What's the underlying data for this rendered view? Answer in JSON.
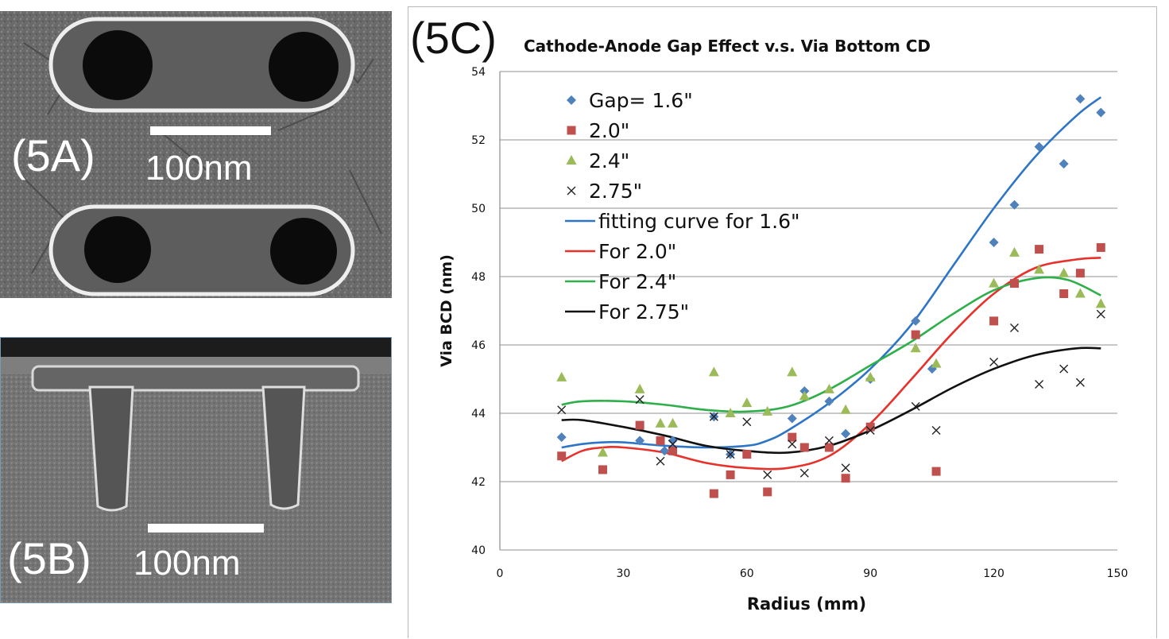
{
  "panels": {
    "a": {
      "label": "(5A)",
      "scale": "100nm"
    },
    "b": {
      "label": "(5B)",
      "scale": "100nm"
    },
    "c": {
      "label": "(5C)"
    }
  },
  "chart_data": {
    "type": "scatter",
    "title": "Cathode-Anode Gap Effect v.s. Via Bottom CD",
    "xlabel": "Radius (mm)",
    "ylabel": "Via BCD (nm)",
    "xlim": [
      0,
      150
    ],
    "ylim": [
      40,
      54
    ],
    "xticks": [
      0,
      30,
      60,
      90,
      120,
      150
    ],
    "yticks": [
      40,
      42,
      44,
      46,
      48,
      50,
      52,
      54
    ],
    "grid": "horizontal",
    "legend_position": "top-left",
    "series": [
      {
        "name": "Gap= 1.6\"",
        "marker": "diamond",
        "color": "#4f81bd",
        "points": [
          [
            15,
            43.3
          ],
          [
            34,
            43.2
          ],
          [
            40,
            42.9
          ],
          [
            42,
            43.2
          ],
          [
            52,
            43.9
          ],
          [
            56,
            42.8
          ],
          [
            71,
            43.85
          ],
          [
            74,
            44.65
          ],
          [
            80,
            44.35
          ],
          [
            84,
            43.4
          ],
          [
            90,
            45.0
          ],
          [
            101,
            46.7
          ],
          [
            105,
            45.3
          ],
          [
            120,
            49.0
          ],
          [
            125,
            50.1
          ],
          [
            131,
            51.8
          ],
          [
            137,
            51.3
          ],
          [
            141,
            53.2
          ],
          [
            146,
            52.8
          ]
        ]
      },
      {
        "name": "2.0\"",
        "marker": "square",
        "color": "#c0504d",
        "points": [
          [
            15,
            42.75
          ],
          [
            25,
            42.35
          ],
          [
            34,
            43.65
          ],
          [
            39,
            43.2
          ],
          [
            42,
            42.9
          ],
          [
            52,
            41.65
          ],
          [
            56,
            42.2
          ],
          [
            60,
            42.8
          ],
          [
            65,
            41.7
          ],
          [
            71,
            43.3
          ],
          [
            74,
            43.0
          ],
          [
            80,
            43.0
          ],
          [
            84,
            42.1
          ],
          [
            90,
            43.6
          ],
          [
            101,
            46.3
          ],
          [
            106,
            42.3
          ],
          [
            120,
            46.7
          ],
          [
            125,
            47.8
          ],
          [
            131,
            48.8
          ],
          [
            137,
            47.5
          ],
          [
            141,
            48.1
          ],
          [
            146,
            48.85
          ]
        ]
      },
      {
        "name": "2.4\"",
        "marker": "triangle",
        "color": "#9bbb59",
        "points": [
          [
            15,
            45.05
          ],
          [
            25,
            42.85
          ],
          [
            34,
            44.7
          ],
          [
            39,
            43.7
          ],
          [
            42,
            43.7
          ],
          [
            52,
            45.2
          ],
          [
            56,
            44.0
          ],
          [
            60,
            44.3
          ],
          [
            65,
            44.05
          ],
          [
            71,
            45.2
          ],
          [
            74,
            44.5
          ],
          [
            80,
            44.7
          ],
          [
            84,
            44.1
          ],
          [
            90,
            45.05
          ],
          [
            101,
            45.9
          ],
          [
            106,
            45.45
          ],
          [
            120,
            47.8
          ],
          [
            125,
            48.7
          ],
          [
            131,
            48.2
          ],
          [
            137,
            48.1
          ],
          [
            141,
            47.5
          ],
          [
            146,
            47.2
          ]
        ]
      },
      {
        "name": "2.75\"",
        "marker": "x",
        "color": "#222222",
        "points": [
          [
            15,
            44.1
          ],
          [
            34,
            44.4
          ],
          [
            39,
            42.6
          ],
          [
            42,
            43.1
          ],
          [
            52,
            43.9
          ],
          [
            56,
            42.8
          ],
          [
            60,
            43.75
          ],
          [
            65,
            42.2
          ],
          [
            71,
            43.1
          ],
          [
            74,
            42.25
          ],
          [
            80,
            43.2
          ],
          [
            84,
            42.4
          ],
          [
            90,
            43.5
          ],
          [
            101,
            44.2
          ],
          [
            106,
            43.5
          ],
          [
            120,
            45.5
          ],
          [
            125,
            46.5
          ],
          [
            131,
            44.85
          ],
          [
            137,
            45.3
          ],
          [
            141,
            44.9
          ],
          [
            146,
            46.9
          ]
        ]
      },
      {
        "name": "fitting curve for 1.6\"",
        "marker": "line",
        "color": "#2e75c8",
        "points": [
          [
            15,
            43.0
          ],
          [
            20,
            43.1
          ],
          [
            25,
            43.15
          ],
          [
            30,
            43.15
          ],
          [
            40,
            43.05
          ],
          [
            50,
            43.0
          ],
          [
            60,
            43.05
          ],
          [
            65,
            43.2
          ],
          [
            70,
            43.5
          ],
          [
            80,
            44.3
          ],
          [
            90,
            45.3
          ],
          [
            100,
            46.6
          ],
          [
            110,
            48.3
          ],
          [
            120,
            50.0
          ],
          [
            130,
            51.5
          ],
          [
            140,
            52.7
          ],
          [
            146,
            53.25
          ]
        ]
      },
      {
        "name": "For 2.0\"",
        "marker": "line",
        "color": "#e8312a",
        "points": [
          [
            15,
            42.6
          ],
          [
            20,
            42.9
          ],
          [
            25,
            43.0
          ],
          [
            30,
            43.0
          ],
          [
            40,
            42.85
          ],
          [
            50,
            42.55
          ],
          [
            60,
            42.4
          ],
          [
            70,
            42.4
          ],
          [
            80,
            42.75
          ],
          [
            90,
            43.7
          ],
          [
            100,
            45.0
          ],
          [
            110,
            46.35
          ],
          [
            120,
            47.5
          ],
          [
            130,
            48.25
          ],
          [
            140,
            48.5
          ],
          [
            146,
            48.55
          ]
        ]
      },
      {
        "name": "For 2.4\"",
        "marker": "line",
        "color": "#2eaf4a",
        "points": [
          [
            15,
            44.25
          ],
          [
            20,
            44.35
          ],
          [
            30,
            44.35
          ],
          [
            40,
            44.25
          ],
          [
            50,
            44.1
          ],
          [
            60,
            44.05
          ],
          [
            70,
            44.2
          ],
          [
            80,
            44.7
          ],
          [
            90,
            45.4
          ],
          [
            100,
            46.1
          ],
          [
            110,
            46.9
          ],
          [
            120,
            47.6
          ],
          [
            130,
            47.95
          ],
          [
            138,
            47.9
          ],
          [
            146,
            47.45
          ]
        ]
      },
      {
        "name": "For 2.75\"",
        "marker": "line",
        "color": "#111111",
        "points": [
          [
            15,
            43.8
          ],
          [
            20,
            43.8
          ],
          [
            30,
            43.6
          ],
          [
            40,
            43.35
          ],
          [
            50,
            43.05
          ],
          [
            60,
            42.9
          ],
          [
            70,
            42.85
          ],
          [
            80,
            43.05
          ],
          [
            90,
            43.5
          ],
          [
            100,
            44.1
          ],
          [
            110,
            44.75
          ],
          [
            120,
            45.3
          ],
          [
            130,
            45.7
          ],
          [
            140,
            45.9
          ],
          [
            146,
            45.9
          ]
        ]
      }
    ]
  }
}
